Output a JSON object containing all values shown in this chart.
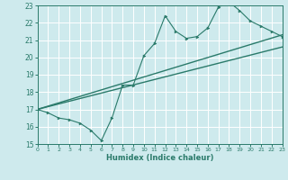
{
  "title": "",
  "xlabel": "Humidex (Indice chaleur)",
  "ylabel": "",
  "bg_color": "#ceeaed",
  "grid_color": "#ffffff",
  "line_color": "#2a7a6a",
  "xmin": 0,
  "xmax": 23,
  "ymin": 15,
  "ymax": 23,
  "xticks": [
    0,
    1,
    2,
    3,
    4,
    5,
    6,
    7,
    8,
    9,
    10,
    11,
    12,
    13,
    14,
    15,
    16,
    17,
    18,
    19,
    20,
    21,
    22,
    23
  ],
  "yticks": [
    15,
    16,
    17,
    18,
    19,
    20,
    21,
    22,
    23
  ],
  "zigzag_x": [
    0,
    1,
    2,
    3,
    4,
    5,
    6,
    7,
    8,
    9,
    10,
    11,
    12,
    13,
    14,
    15,
    16,
    17,
    18,
    19,
    20,
    21,
    22,
    23
  ],
  "zigzag_y": [
    17.0,
    16.8,
    16.5,
    16.4,
    16.2,
    15.8,
    15.2,
    16.5,
    18.4,
    18.4,
    20.1,
    20.8,
    22.4,
    21.5,
    21.1,
    21.2,
    21.7,
    22.9,
    23.2,
    22.7,
    22.1,
    21.8,
    21.5,
    21.2
  ],
  "upper_line_x": [
    0,
    23
  ],
  "upper_line_y": [
    17.0,
    21.3
  ],
  "lower_line_x": [
    0,
    23
  ],
  "lower_line_y": [
    17.0,
    20.6
  ]
}
